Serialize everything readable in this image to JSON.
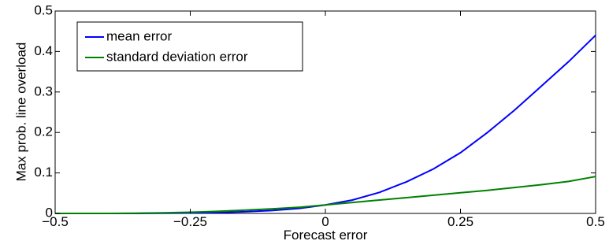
{
  "chart_data": {
    "type": "line",
    "xlabel": "Forecast error",
    "ylabel": "Max prob. line overload",
    "xlim": [
      -0.5,
      0.5
    ],
    "ylim": [
      0,
      0.5
    ],
    "x_ticks": [
      -0.5,
      -0.25,
      0,
      0.25,
      0.5
    ],
    "x_tick_labels": [
      "−0.5",
      "−0.25",
      "0",
      "0.25",
      "0.5"
    ],
    "y_ticks": [
      0,
      0.1,
      0.2,
      0.3,
      0.4,
      0.5
    ],
    "y_tick_labels": [
      "0",
      "0.1",
      "0.2",
      "0.3",
      "0.4",
      "0.5"
    ],
    "grid": false,
    "legend_position": "top-left",
    "series": [
      {
        "name": "mean error",
        "color": "#0000ff",
        "x": [
          -0.5,
          -0.45,
          -0.4,
          -0.35,
          -0.3,
          -0.25,
          -0.2,
          -0.15,
          -0.1,
          -0.05,
          0,
          0.05,
          0.1,
          0.15,
          0.2,
          0.25,
          0.3,
          0.35,
          0.4,
          0.45,
          0.5
        ],
        "y": [
          0,
          0,
          0,
          0,
          0.0005,
          0.001,
          0.002,
          0.004,
          0.007,
          0.012,
          0.021,
          0.033,
          0.052,
          0.078,
          0.11,
          0.15,
          0.2,
          0.255,
          0.315,
          0.375,
          0.44
        ]
      },
      {
        "name": "standard deviation error",
        "color": "#008000",
        "x": [
          -0.5,
          -0.45,
          -0.4,
          -0.35,
          -0.3,
          -0.25,
          -0.2,
          -0.15,
          -0.1,
          -0.05,
          0,
          0.05,
          0.1,
          0.15,
          0.2,
          0.25,
          0.3,
          0.35,
          0.4,
          0.45,
          0.5
        ],
        "y": [
          0,
          0,
          0,
          0.0005,
          0.0015,
          0.003,
          0.005,
          0.008,
          0.011,
          0.015,
          0.021,
          0.027,
          0.033,
          0.039,
          0.045,
          0.051,
          0.057,
          0.064,
          0.071,
          0.079,
          0.091
        ]
      }
    ]
  }
}
